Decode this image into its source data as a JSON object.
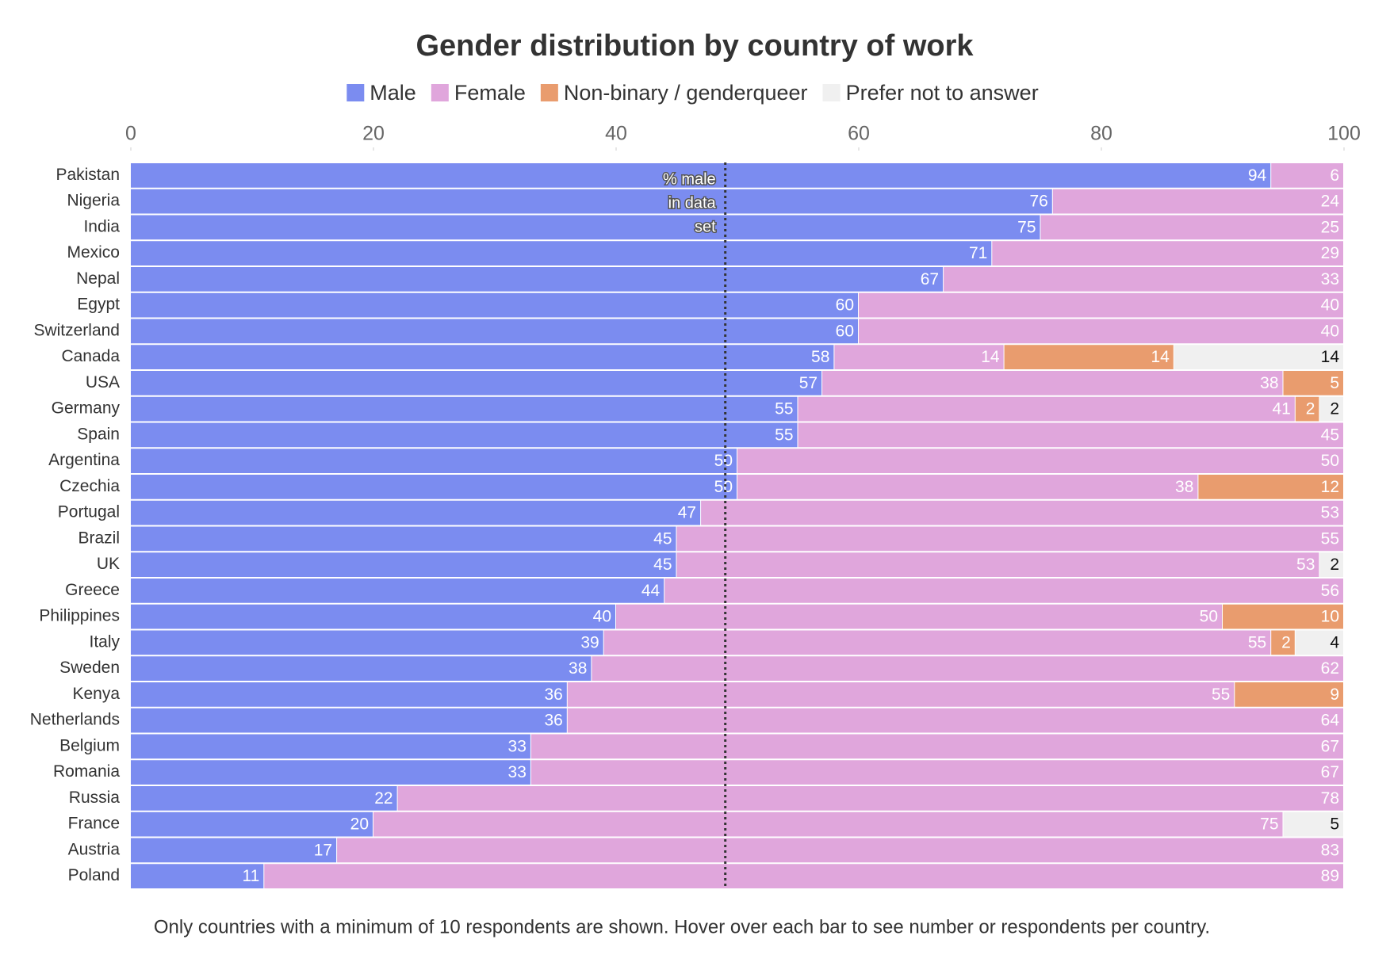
{
  "chart_data": {
    "type": "stacked_bar_horizontal",
    "title": "Gender distribution by country of work",
    "note": "Only countries with a minimum of 10 respondents are shown. Hover over each bar to see number or respondents per country.",
    "categories": [
      "Pakistan",
      "Nigeria",
      "India",
      "Mexico",
      "Nepal",
      "Egypt",
      "Switzerland",
      "Canada",
      "USA",
      "Germany",
      "Spain",
      "Argentina",
      "Czechia",
      "Portugal",
      "Brazil",
      "UK",
      "Greece",
      "Philippines",
      "Italy",
      "Sweden",
      "Kenya",
      "Netherlands",
      "Belgium",
      "Romania",
      "Russia",
      "France",
      "Austria",
      "Poland"
    ],
    "series": [
      {
        "name": "Male",
        "color": "#7b8cf0",
        "label_color": "#ffffff",
        "values": [
          94,
          76,
          75,
          71,
          67,
          60,
          60,
          58,
          57,
          55,
          55,
          50,
          50,
          47,
          45,
          45,
          44,
          40,
          39,
          38,
          36,
          36,
          33,
          33,
          22,
          20,
          17,
          11
        ]
      },
      {
        "name": "Female",
        "color": "#e0a6dc",
        "label_color": "#ffffff",
        "values": [
          6,
          24,
          25,
          29,
          33,
          40,
          40,
          14,
          38,
          41,
          45,
          50,
          38,
          53,
          55,
          53,
          56,
          50,
          55,
          62,
          55,
          64,
          67,
          67,
          78,
          75,
          83,
          89
        ]
      },
      {
        "name": "Non-binary / genderqueer",
        "color": "#e99c6e",
        "label_color": "#ffffff",
        "values": [
          null,
          null,
          null,
          null,
          null,
          null,
          null,
          14,
          5,
          2,
          null,
          null,
          12,
          null,
          null,
          null,
          null,
          10,
          2,
          null,
          9,
          null,
          null,
          null,
          null,
          null,
          null,
          null
        ]
      },
      {
        "name": "Prefer not to answer",
        "color": "#f0f0f0",
        "label_color": "#111111",
        "values": [
          null,
          null,
          null,
          null,
          null,
          null,
          null,
          14,
          null,
          2,
          null,
          null,
          null,
          null,
          null,
          2,
          null,
          null,
          4,
          null,
          null,
          null,
          null,
          null,
          null,
          5,
          null,
          null
        ]
      }
    ],
    "xlim": [
      0,
      100
    ],
    "xticks": [
      0,
      20,
      40,
      60,
      80,
      100
    ],
    "reference_line": {
      "value": 49,
      "label_lines": [
        "% male",
        "in data",
        "set"
      ]
    }
  }
}
